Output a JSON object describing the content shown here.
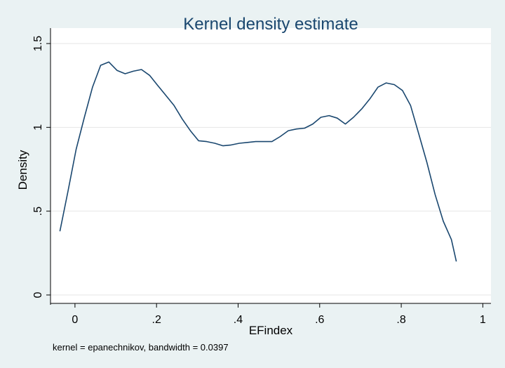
{
  "chart_data": {
    "type": "line",
    "title": "Kernel density estimate",
    "xlabel": "EFindex",
    "ylabel": "Density",
    "note": "kernel = epanechnikov, bandwidth = 0.0397",
    "xlim": [
      -0.06,
      1.02
    ],
    "ylim": [
      0,
      1.5
    ],
    "xticks": [
      {
        "value": 0,
        "label": "0"
      },
      {
        "value": 0.2,
        "label": ".2"
      },
      {
        "value": 0.4,
        "label": ".4"
      },
      {
        "value": 0.6,
        "label": ".6"
      },
      {
        "value": 0.8,
        "label": ".8"
      },
      {
        "value": 1,
        "label": "1"
      }
    ],
    "yticks": [
      {
        "value": 0,
        "label": "0"
      },
      {
        "value": 0.5,
        "label": ".5"
      },
      {
        "value": 1,
        "label": "1"
      },
      {
        "value": 1.5,
        "label": "1.5"
      }
    ],
    "grid": true,
    "series": [
      {
        "color": "#1a476f",
        "x": [
          -0.037,
          -0.017,
          0.003,
          0.023,
          0.043,
          0.063,
          0.083,
          0.103,
          0.123,
          0.143,
          0.163,
          0.183,
          0.203,
          0.223,
          0.243,
          0.263,
          0.283,
          0.303,
          0.323,
          0.343,
          0.363,
          0.383,
          0.403,
          0.423,
          0.443,
          0.463,
          0.483,
          0.503,
          0.523,
          0.543,
          0.563,
          0.583,
          0.603,
          0.623,
          0.643,
          0.663,
          0.683,
          0.703,
          0.723,
          0.743,
          0.763,
          0.783,
          0.803,
          0.823,
          0.843,
          0.863,
          0.883,
          0.903,
          0.923,
          0.935
        ],
        "y": [
          0.38,
          0.62,
          0.87,
          1.06,
          1.24,
          1.37,
          1.39,
          1.34,
          1.32,
          1.335,
          1.345,
          1.31,
          1.25,
          1.19,
          1.13,
          1.05,
          0.98,
          0.92,
          0.915,
          0.905,
          0.89,
          0.895,
          0.905,
          0.91,
          0.915,
          0.915,
          0.915,
          0.945,
          0.98,
          0.99,
          0.995,
          1.02,
          1.06,
          1.07,
          1.055,
          1.02,
          1.06,
          1.11,
          1.17,
          1.24,
          1.265,
          1.255,
          1.22,
          1.13,
          0.96,
          0.79,
          0.6,
          0.44,
          0.33,
          0.2
        ]
      }
    ]
  }
}
